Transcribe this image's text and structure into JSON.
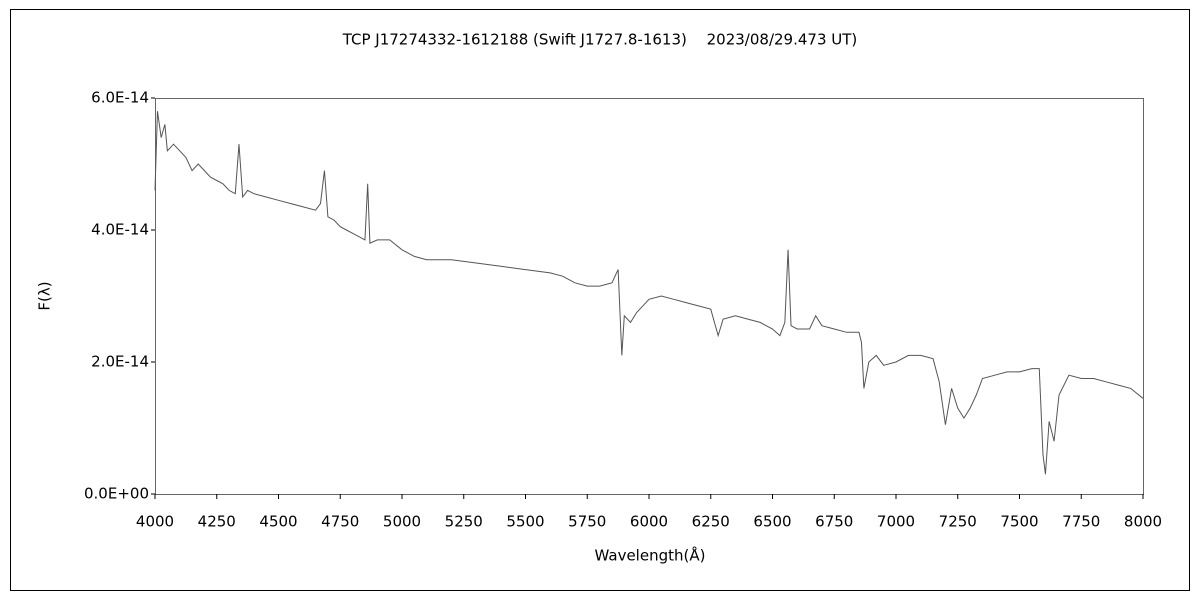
{
  "chart_data": {
    "type": "line",
    "title": "TCP J17274332-1612188 (Swift J1727.8-1613)　 2023/08/29.473 UT)",
    "x_label": "Wavelength(Å)",
    "y_label": "F(λ)",
    "color": "#555555",
    "x": [
      4000,
      4010,
      4025,
      4040,
      4050,
      4075,
      4100,
      4125,
      4150,
      4175,
      4200,
      4225,
      4250,
      4275,
      4300,
      4325,
      4340,
      4355,
      4375,
      4400,
      4450,
      4500,
      4550,
      4600,
      4650,
      4670,
      4686,
      4700,
      4725,
      4750,
      4775,
      4800,
      4825,
      4850,
      4861,
      4870,
      4900,
      4950,
      5000,
      5050,
      5100,
      5150,
      5200,
      5300,
      5400,
      5500,
      5600,
      5650,
      5700,
      5750,
      5800,
      5850,
      5875,
      5890,
      5900,
      5925,
      5950,
      6000,
      6050,
      6100,
      6150,
      6200,
      6250,
      6280,
      6300,
      6350,
      6400,
      6450,
      6500,
      6530,
      6550,
      6563,
      6575,
      6600,
      6650,
      6675,
      6700,
      6750,
      6800,
      6850,
      6860,
      6870,
      6890,
      6920,
      6950,
      7000,
      7050,
      7100,
      7150,
      7175,
      7200,
      7225,
      7250,
      7275,
      7300,
      7325,
      7350,
      7400,
      7450,
      7500,
      7550,
      7580,
      7595,
      7605,
      7620,
      7640,
      7660,
      7700,
      7750,
      7800,
      7850,
      7900,
      7950,
      8000
    ],
    "values": [
      4.6e-14,
      5.8e-14,
      5.4e-14,
      5.6e-14,
      5.2e-14,
      5.3e-14,
      5.2e-14,
      5.1e-14,
      4.9e-14,
      5e-14,
      4.9e-14,
      4.8e-14,
      4.75e-14,
      4.7e-14,
      4.6e-14,
      4.55e-14,
      5.3e-14,
      4.5e-14,
      4.6e-14,
      4.55e-14,
      4.5e-14,
      4.45e-14,
      4.4e-14,
      4.35e-14,
      4.3e-14,
      4.4e-14,
      4.9e-14,
      4.2e-14,
      4.15e-14,
      4.05e-14,
      4e-14,
      3.95e-14,
      3.9e-14,
      3.85e-14,
      4.7e-14,
      3.8e-14,
      3.85e-14,
      3.85e-14,
      3.7e-14,
      3.6e-14,
      3.55e-14,
      3.55e-14,
      3.55e-14,
      3.5e-14,
      3.45e-14,
      3.4e-14,
      3.35e-14,
      3.3e-14,
      3.2e-14,
      3.15e-14,
      3.15e-14,
      3.2e-14,
      3.4e-14,
      2.1e-14,
      2.7e-14,
      2.6e-14,
      2.75e-14,
      2.95e-14,
      3e-14,
      2.95e-14,
      2.9e-14,
      2.85e-14,
      2.8e-14,
      2.4e-14,
      2.65e-14,
      2.7e-14,
      2.65e-14,
      2.6e-14,
      2.5e-14,
      2.4e-14,
      2.6e-14,
      3.7e-14,
      2.55e-14,
      2.5e-14,
      2.5e-14,
      2.7e-14,
      2.55e-14,
      2.5e-14,
      2.45e-14,
      2.45e-14,
      2.3e-14,
      1.6e-14,
      2e-14,
      2.1e-14,
      1.95e-14,
      2e-14,
      2.1e-14,
      2.1e-14,
      2.05e-14,
      1.7e-14,
      1.05e-14,
      1.6e-14,
      1.3e-14,
      1.15e-14,
      1.3e-14,
      1.5e-14,
      1.75e-14,
      1.8e-14,
      1.85e-14,
      1.85e-14,
      1.9e-14,
      1.9e-14,
      6e-15,
      3e-15,
      1.1e-14,
      8e-15,
      1.5e-14,
      1.8e-14,
      1.75e-14,
      1.75e-14,
      1.7e-14,
      1.65e-14,
      1.6e-14,
      1.45e-14
    ],
    "xlim": [
      4000,
      8000
    ],
    "xticks": [
      4000,
      4250,
      4500,
      4750,
      5000,
      5250,
      5500,
      5750,
      6000,
      6250,
      6500,
      6750,
      7000,
      7250,
      7500,
      7750,
      8000
    ],
    "ylim": [
      0,
      6e-14
    ],
    "yticks": [
      {
        "value": 0,
        "label": "0.0E+00"
      },
      {
        "value": 2e-14,
        "label": "2.0E-14"
      },
      {
        "value": 4e-14,
        "label": "4.0E-14"
      },
      {
        "value": 6e-14,
        "label": "6.0E-14"
      }
    ],
    "grid": false
  }
}
